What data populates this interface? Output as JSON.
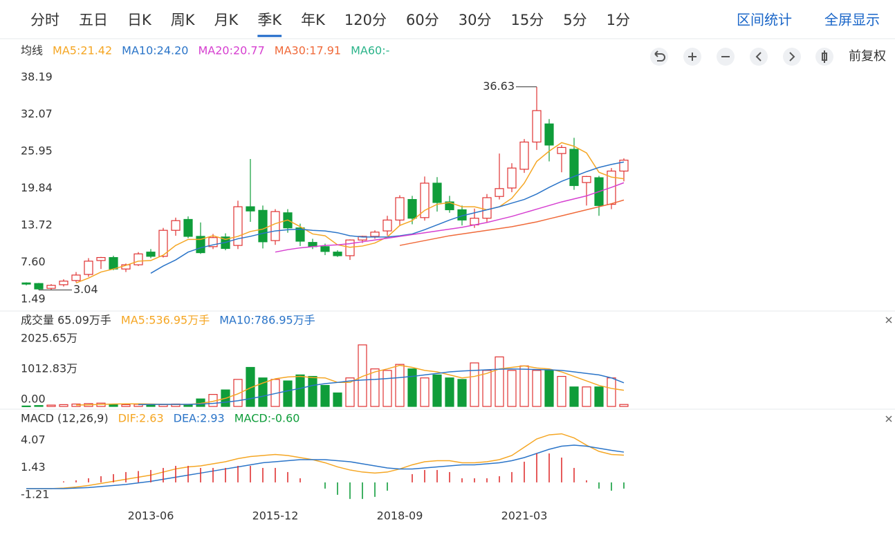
{
  "toolbar": {
    "tabs": [
      "分时",
      "五日",
      "日K",
      "周K",
      "月K",
      "季K",
      "年K",
      "120分",
      "60分",
      "30分",
      "15分",
      "5分",
      "1分"
    ],
    "active_tab": "季K",
    "actions": [
      "区间统计",
      "全屏显示"
    ],
    "adjust": "前复权"
  },
  "chart_data": [
    {
      "type": "candlestick",
      "title": "均线",
      "categories": [
        null,
        null,
        null,
        null,
        null,
        null,
        null,
        null,
        null,
        null,
        "2013-06",
        null,
        null,
        null,
        null,
        null,
        null,
        null,
        null,
        null,
        "2015-12",
        null,
        null,
        null,
        null,
        null,
        null,
        null,
        null,
        null,
        "2018-09",
        null,
        null,
        null,
        null,
        null,
        null,
        null,
        null,
        null,
        "2021-03",
        null,
        null,
        null,
        null,
        null,
        null,
        null,
        null
      ],
      "ohlc": [
        [
          4.2,
          4.3,
          3.8,
          4.0
        ],
        [
          4.1,
          4.2,
          3.04,
          3.2
        ],
        [
          3.3,
          4.0,
          3.1,
          3.8
        ],
        [
          3.9,
          4.8,
          3.6,
          4.5
        ],
        [
          4.6,
          6.0,
          4.3,
          5.5
        ],
        [
          5.6,
          8.3,
          5.2,
          7.8
        ],
        [
          7.9,
          8.5,
          6.5,
          8.4
        ],
        [
          8.4,
          8.7,
          6.3,
          6.5
        ],
        [
          6.5,
          7.4,
          6.0,
          7.2
        ],
        [
          7.2,
          9.3,
          7.0,
          9.0
        ],
        [
          9.3,
          9.8,
          8.3,
          8.6
        ],
        [
          8.6,
          13.3,
          8.4,
          12.9
        ],
        [
          12.9,
          15.0,
          12.0,
          14.5
        ],
        [
          14.7,
          15.2,
          11.6,
          11.9
        ],
        [
          11.9,
          14.2,
          9.0,
          9.2
        ],
        [
          10.2,
          12.3,
          9.8,
          11.7
        ],
        [
          11.8,
          12.4,
          9.6,
          9.9
        ],
        [
          10.4,
          17.8,
          9.8,
          16.8
        ],
        [
          16.8,
          24.7,
          14.3,
          16.1
        ],
        [
          16.2,
          17.0,
          9.9,
          11.0
        ],
        [
          11.2,
          16.4,
          10.5,
          16.0
        ],
        [
          15.8,
          16.4,
          12.5,
          13.3
        ],
        [
          13.3,
          14.0,
          10.3,
          11.1
        ],
        [
          10.9,
          11.5,
          9.8,
          10.2
        ],
        [
          10.2,
          10.7,
          8.8,
          9.4
        ],
        [
          9.3,
          9.6,
          8.5,
          8.7
        ],
        [
          8.7,
          11.4,
          8.0,
          11.3
        ],
        [
          11.3,
          12.0,
          10.8,
          11.9
        ],
        [
          11.9,
          12.9,
          11.5,
          12.6
        ],
        [
          12.8,
          15.3,
          12.0,
          14.6
        ],
        [
          14.6,
          18.7,
          13.6,
          18.3
        ],
        [
          18.0,
          18.6,
          13.9,
          14.9
        ],
        [
          15.0,
          21.8,
          14.5,
          20.7
        ],
        [
          20.7,
          21.7,
          16.0,
          17.5
        ],
        [
          17.6,
          18.6,
          15.8,
          16.3
        ],
        [
          16.3,
          17.0,
          13.7,
          14.6
        ],
        [
          13.8,
          16.5,
          13.3,
          14.9
        ],
        [
          14.9,
          18.9,
          14.2,
          18.3
        ],
        [
          18.5,
          25.6,
          18.0,
          19.8
        ],
        [
          19.9,
          24.0,
          19.2,
          23.2
        ],
        [
          23.0,
          28.0,
          22.4,
          27.5
        ],
        [
          27.5,
          36.63,
          26.2,
          32.7
        ],
        [
          30.5,
          31.3,
          24.3,
          27.0
        ],
        [
          25.6,
          27.0,
          22.5,
          26.6
        ],
        [
          26.3,
          28.2,
          19.6,
          20.3
        ],
        [
          20.8,
          21.9,
          17.0,
          21.8
        ],
        [
          21.6,
          21.9,
          15.3,
          17.0
        ],
        [
          17.2,
          23.2,
          16.4,
          22.7
        ],
        [
          22.7,
          24.8,
          21.0,
          24.5
        ]
      ],
      "up_color": "#e03131",
      "down_color": "#0f9d3a",
      "series": [
        {
          "name": "MA5:21.42",
          "color": "#f5a623",
          "values": [
            null,
            null,
            null,
            null,
            4.2,
            5.0,
            6.0,
            6.5,
            7.1,
            7.8,
            7.9,
            8.8,
            10.4,
            11.4,
            11.4,
            12.0,
            11.4,
            11.9,
            12.7,
            13.1,
            14.0,
            14.6,
            13.5,
            12.3,
            12.0,
            10.5,
            10.1,
            10.3,
            10.8,
            11.8,
            13.7,
            14.5,
            16.2,
            17.2,
            17.5,
            16.8,
            16.8,
            16.3,
            16.8,
            18.2,
            20.7,
            24.3,
            26.0,
            27.4,
            26.8,
            25.7,
            22.5,
            21.7,
            21.42
          ]
        },
        {
          "name": "MA10:24.20",
          "color": "#2a74c8",
          "values": [
            null,
            null,
            null,
            null,
            null,
            null,
            null,
            null,
            null,
            null,
            5.8,
            7.0,
            8.0,
            9.3,
            10.0,
            10.5,
            10.9,
            11.5,
            11.9,
            12.4,
            12.8,
            13.0,
            13.1,
            12.9,
            12.8,
            12.5,
            12.0,
            11.8,
            11.8,
            11.8,
            12.0,
            12.3,
            13.0,
            13.8,
            14.6,
            15.3,
            15.8,
            16.3,
            16.8,
            17.4,
            18.0,
            18.9,
            20.0,
            21.0,
            21.8,
            22.6,
            23.3,
            23.8,
            24.2
          ]
        },
        {
          "name": "MA20:20.77",
          "color": "#d63fd0",
          "values": [
            null,
            null,
            null,
            null,
            null,
            null,
            null,
            null,
            null,
            null,
            null,
            null,
            null,
            null,
            null,
            null,
            null,
            null,
            null,
            null,
            9.3,
            9.7,
            10.0,
            10.2,
            10.4,
            10.5,
            10.7,
            11.0,
            11.3,
            11.6,
            11.9,
            12.2,
            12.5,
            12.8,
            13.1,
            13.4,
            13.8,
            14.2,
            14.7,
            15.2,
            15.8,
            16.4,
            17.0,
            17.6,
            18.1,
            18.6,
            19.3,
            20.0,
            20.77
          ]
        },
        {
          "name": "MA30:17.91",
          "color": "#f06a3a",
          "values": [
            null,
            null,
            null,
            null,
            null,
            null,
            null,
            null,
            null,
            null,
            null,
            null,
            null,
            null,
            null,
            null,
            null,
            null,
            null,
            null,
            null,
            null,
            null,
            null,
            null,
            null,
            null,
            null,
            null,
            null,
            10.4,
            10.8,
            11.2,
            11.6,
            12.0,
            12.3,
            12.6,
            12.9,
            13.2,
            13.5,
            13.9,
            14.3,
            14.8,
            15.3,
            15.8,
            16.3,
            16.8,
            17.3,
            17.91
          ]
        }
      ],
      "legend_note": {
        "text": "MA60:-",
        "color": "#2bb48a"
      },
      "ylim": [
        1.49,
        38.19
      ],
      "yticks": [
        1.49,
        {
          "value": 7.6,
          "label": "7.60"
        },
        13.72,
        19.84,
        25.95,
        32.07,
        38.19
      ],
      "grid": false
    },
    {
      "type": "bar",
      "title": "成交量 65.09万手",
      "values": [
        15,
        30,
        45,
        60,
        80,
        95,
        110,
        70,
        60,
        70,
        50,
        60,
        80,
        70,
        250,
        400,
        550,
        900,
        1300,
        950,
        900,
        850,
        1050,
        1000,
        700,
        450,
        950,
        2050,
        1250,
        1200,
        1400,
        1250,
        950,
        1050,
        950,
        900,
        1450,
        1200,
        1650,
        1200,
        1350,
        1200,
        1200,
        1000,
        650,
        650,
        650,
        950,
        65.09
      ],
      "series": [
        {
          "name": "MA5:536.95万手",
          "color": "#f5a623",
          "values": [
            null,
            null,
            null,
            null,
            45,
            55,
            70,
            80,
            85,
            85,
            80,
            70,
            65,
            65,
            100,
            170,
            270,
            420,
            620,
            780,
            920,
            980,
            1000,
            960,
            950,
            800,
            800,
            1000,
            1150,
            1250,
            1370,
            1300,
            1200,
            1150,
            1050,
            950,
            1000,
            1100,
            1250,
            1300,
            1350,
            1280,
            1250,
            1150,
            1000,
            850,
            700,
            600,
            536.95
          ]
        },
        {
          "name": "MA10:786.95万手",
          "color": "#2a74c8",
          "values": [
            null,
            null,
            null,
            null,
            null,
            null,
            null,
            null,
            null,
            60,
            65,
            70,
            70,
            70,
            80,
            100,
            140,
            190,
            260,
            340,
            430,
            520,
            600,
            700,
            760,
            800,
            850,
            880,
            900,
            930,
            960,
            1000,
            1050,
            1100,
            1150,
            1180,
            1200,
            1220,
            1240,
            1250,
            1240,
            1230,
            1220,
            1200,
            1150,
            1100,
            1050,
            950,
            786.95
          ]
        }
      ],
      "ylim": [
        0,
        2025.65
      ],
      "yticks": [
        {
          "value": 0,
          "label": "0.00"
        },
        {
          "value": 1012.83,
          "label": "1012.83万"
        },
        {
          "value": 2025.65,
          "label": "2025.65万"
        }
      ]
    },
    {
      "type": "macd",
      "title": "MACD (12,26,9)",
      "series": [
        {
          "name": "DIF:2.63",
          "color": "#f5a623",
          "values": [
            -0.6,
            -0.6,
            -0.6,
            -0.55,
            -0.45,
            -0.3,
            -0.1,
            0.1,
            0.3,
            0.5,
            0.7,
            1.0,
            1.3,
            1.5,
            1.6,
            1.8,
            2.0,
            2.3,
            2.5,
            2.6,
            2.7,
            2.6,
            2.4,
            2.2,
            1.9,
            1.5,
            1.2,
            1.0,
            0.9,
            1.0,
            1.3,
            1.7,
            2.0,
            2.1,
            2.1,
            1.9,
            1.9,
            2.0,
            2.2,
            2.6,
            3.4,
            4.2,
            4.6,
            4.7,
            4.3,
            3.6,
            3.0,
            2.7,
            2.63
          ]
        },
        {
          "name": "DEA:2.93",
          "color": "#2a74c8",
          "values": [
            -0.6,
            -0.6,
            -0.6,
            -0.6,
            -0.55,
            -0.5,
            -0.4,
            -0.3,
            -0.2,
            -0.05,
            0.1,
            0.3,
            0.5,
            0.7,
            0.9,
            1.1,
            1.3,
            1.5,
            1.7,
            1.9,
            2.0,
            2.1,
            2.2,
            2.2,
            2.2,
            2.1,
            2.0,
            1.8,
            1.6,
            1.4,
            1.3,
            1.3,
            1.4,
            1.5,
            1.6,
            1.7,
            1.7,
            1.8,
            1.9,
            2.1,
            2.4,
            2.8,
            3.2,
            3.5,
            3.6,
            3.5,
            3.3,
            3.1,
            2.93
          ]
        },
        {
          "name": "MACD:-0.60",
          "color": "#0f9d3a",
          "bars": true,
          "values": [
            0,
            0,
            0,
            0.1,
            0.2,
            0.4,
            0.6,
            0.8,
            1.0,
            1.1,
            1.2,
            1.4,
            1.6,
            1.6,
            1.4,
            1.4,
            1.4,
            1.6,
            1.6,
            1.4,
            1.4,
            1.0,
            0.4,
            0,
            -0.6,
            -1.2,
            -1.6,
            -1.6,
            -1.4,
            -0.8,
            0,
            0.8,
            1.2,
            1.2,
            1.0,
            0.4,
            0.4,
            0.4,
            0.6,
            1.0,
            2.0,
            2.8,
            2.8,
            2.4,
            1.4,
            0.2,
            -0.6,
            -0.8,
            -0.6
          ]
        }
      ],
      "ylim": [
        -1.21,
        4.07
      ],
      "yticks": [
        -1.21,
        1.43,
        4.07
      ]
    }
  ]
}
